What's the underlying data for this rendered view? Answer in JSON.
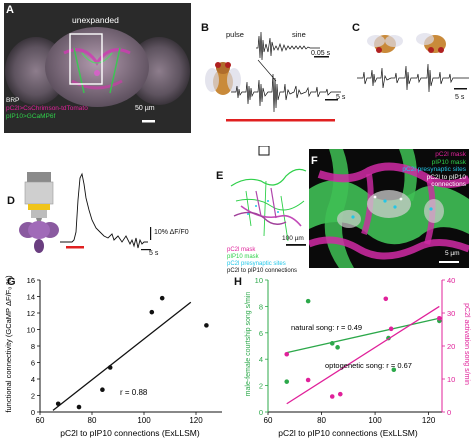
{
  "panels": {
    "A": {
      "label": "A",
      "title": "unexpanded",
      "legend": [
        "BRP",
        "pC2l>CsChrimson-tdTomato",
        "pIP10>GCaMP6f"
      ],
      "scale": "50 µm"
    },
    "B": {
      "label": "B",
      "pulse": "pulse",
      "sine": "sine",
      "inset_scale": "0.05 s",
      "scale": "5 s"
    },
    "C": {
      "label": "C",
      "scale": "5 s"
    },
    "D": {
      "label": "D",
      "yscale": "10% ΔF/F0",
      "xscale": "5 s"
    },
    "E": {
      "label": "E",
      "legend": [
        "pC2l mask",
        "pIP10 mask",
        "pC2l presynaptic sites",
        "pC2l to pIP10 connections"
      ],
      "scale": "100 µm"
    },
    "F": {
      "label": "F",
      "legend": [
        "pC2l mask",
        "pIP10 mask",
        "pC2l presynaptic sites",
        "pC2l to pIP10 connections"
      ],
      "scale": "5 µm"
    },
    "G": {
      "label": "G",
      "r_text": "r = 0.88"
    },
    "H": {
      "label": "H",
      "natural": "natural song: r = 0.49",
      "opto": "optogenetic song: r = 0.67"
    }
  },
  "colors": {
    "magenta": "#e0219a",
    "green": "#2fd04a",
    "cyan": "#23c7e8",
    "red": "#e02020",
    "black_line": "#111111"
  },
  "chart_data": [
    {
      "id": "G",
      "type": "scatter",
      "xlabel": "pC2l to pIP10 connections (ExLLSM)",
      "ylabel": "functional connectivity (GCaMP ΔF/F₀ %)",
      "xlim": [
        60,
        130
      ],
      "ylim": [
        0,
        16
      ],
      "xticks": [
        60,
        80,
        100,
        120
      ],
      "yticks": [
        0,
        2,
        4,
        6,
        8,
        10,
        12,
        14,
        16
      ],
      "x": [
        67,
        75,
        84,
        87,
        103,
        107,
        124
      ],
      "y": [
        1.0,
        0.6,
        2.7,
        5.4,
        12.1,
        13.8,
        10.5
      ],
      "fit": {
        "x": [
          65,
          118
        ],
        "y": [
          0.2,
          13.3
        ]
      }
    },
    {
      "id": "H",
      "type": "scatter",
      "xlabel": "pC2l to pIP10 connections (ExLLSM)",
      "ylabel": "male-female courtship song s/min",
      "ylabel_right": "pC2l activation song s/min",
      "xlim": [
        60,
        125
      ],
      "ylim": [
        0,
        10
      ],
      "ylim_right": [
        0,
        40
      ],
      "xticks": [
        60,
        80,
        100,
        120
      ],
      "yticks": [
        0,
        2,
        4,
        6,
        8,
        10
      ],
      "yticks_right": [
        0,
        10,
        20,
        30,
        40
      ],
      "series": [
        {
          "name": "natural song",
          "axis": "left",
          "x": [
            67,
            75,
            84,
            86,
            105,
            107,
            124
          ],
          "y": [
            2.3,
            8.4,
            5.2,
            4.9,
            5.6,
            3.2,
            6.9
          ],
          "fit": {
            "x": [
              67,
              124
            ],
            "y": [
              4.5,
              7.1
            ]
          }
        },
        {
          "name": "optogenetic song",
          "axis": "right",
          "x": [
            67,
            75,
            84,
            87,
            104,
            106,
            124
          ],
          "y": [
            17.5,
            9.7,
            4.7,
            5.4,
            34.3,
            25.2,
            28.4
          ],
          "fit": {
            "x": [
              67,
              124
            ],
            "y": [
              2.5,
              32.0
            ]
          }
        }
      ]
    }
  ]
}
